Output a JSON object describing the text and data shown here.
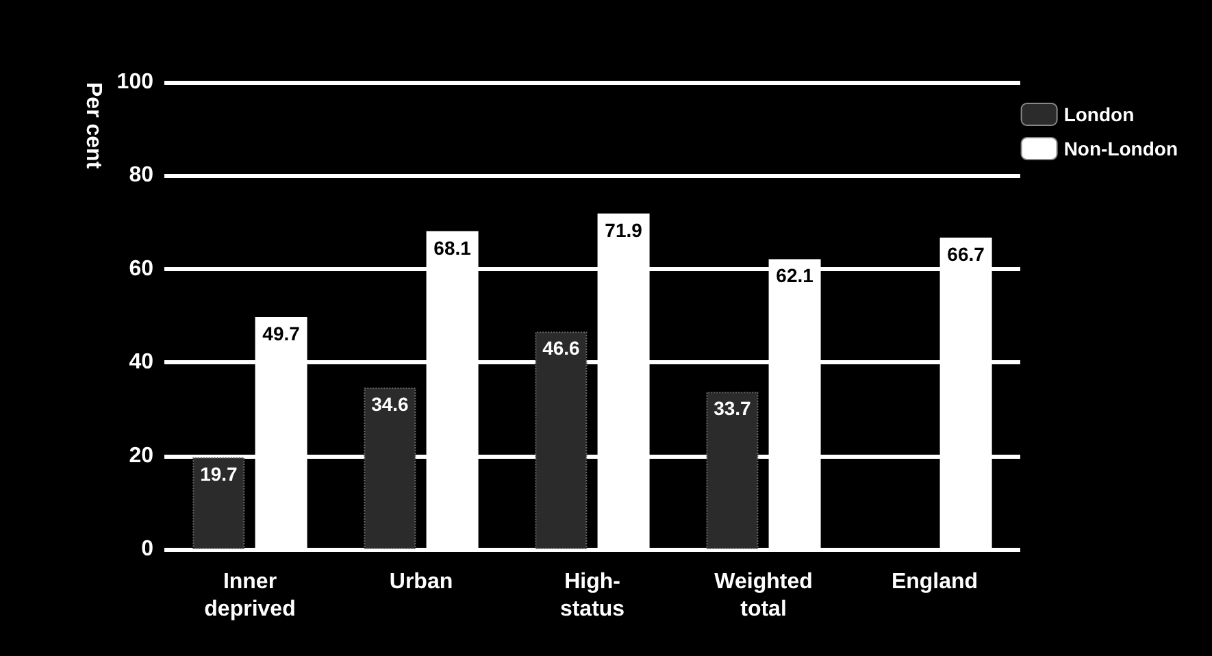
{
  "chart_data": {
    "type": "bar",
    "ylabel": "Per cent",
    "categories": [
      "Inner\ndeprived",
      "Urban",
      "High-\nstatus",
      "Weighted\ntotal",
      "England"
    ],
    "series": [
      {
        "name": "London",
        "color": "#2b2b2b",
        "values": [
          19.7,
          34.6,
          46.6,
          33.7,
          null
        ]
      },
      {
        "name": "Non-London",
        "color": "#ffffff",
        "values": [
          49.7,
          68.1,
          71.9,
          62.1,
          66.7
        ]
      }
    ],
    "ylim": [
      0,
      100
    ],
    "yticks": [
      0,
      20,
      40,
      60,
      80,
      100
    ],
    "grid": "y",
    "legend": "top right",
    "data_labels": true
  }
}
